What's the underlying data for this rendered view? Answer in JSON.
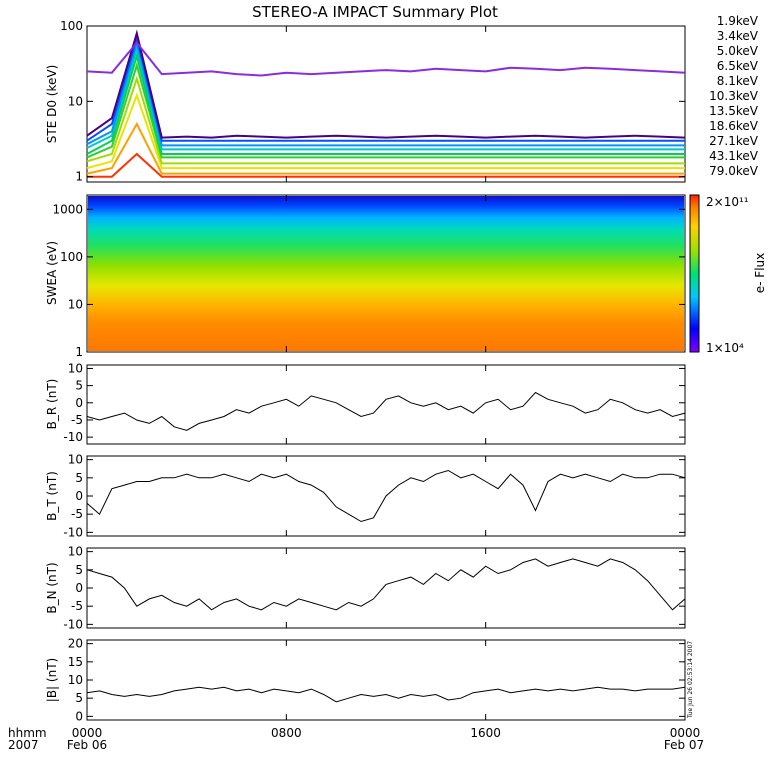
{
  "title": "STEREO-A IMPACT Summary Plot",
  "footer": {
    "time_label": "hhmm",
    "year_label": "2007",
    "x_ticks": [
      "0000",
      "0800",
      "1600",
      "0000"
    ],
    "date_labels": [
      "Feb 06",
      "Feb 07"
    ],
    "stamp": "Tue Jun 26 02:53:14 2007"
  },
  "colors": {
    "trace": "#000000",
    "axis": "#000000",
    "background": "#ffffff"
  },
  "chart_data": [
    {
      "type": "line",
      "panel": "ste",
      "ylabel": "STE D0 (keV)",
      "yscale": "log",
      "ylim": [
        0.85,
        100
      ],
      "y_ticks": [
        "1",
        "10",
        "100"
      ],
      "xlim_hours": [
        0,
        24
      ],
      "legend_position": "right",
      "series": [
        {
          "name": "1.9keV",
          "color": "#8a2be2",
          "values": [
            25,
            24,
            60,
            23,
            24,
            25,
            23,
            22,
            24,
            23,
            24,
            25,
            26,
            25,
            27,
            26,
            25,
            28,
            27,
            26,
            28,
            27,
            26,
            25,
            24
          ]
        },
        {
          "name": "3.4keV",
          "color": "#4b0082",
          "values": [
            3.5,
            6,
            80,
            3.3,
            3.4,
            3.3,
            3.5,
            3.4,
            3.3,
            3.4,
            3.5,
            3.4,
            3.3,
            3.4,
            3.5,
            3.4,
            3.3,
            3.4,
            3.5,
            3.4,
            3.3,
            3.4,
            3.5,
            3.4,
            3.3
          ]
        },
        {
          "name": "5.0keV",
          "color": "#0050ff",
          "values": [
            3,
            5,
            70,
            3,
            3,
            3,
            3,
            3,
            3,
            3,
            3,
            3,
            3,
            3,
            3,
            3,
            3,
            3,
            3,
            3,
            3,
            3,
            3,
            3,
            3
          ]
        },
        {
          "name": "6.5keV",
          "color": "#0096ff",
          "values": [
            2.7,
            4,
            60,
            2.6,
            2.6,
            2.6,
            2.6,
            2.6,
            2.6,
            2.6,
            2.6,
            2.6,
            2.6,
            2.6,
            2.6,
            2.6,
            2.6,
            2.6,
            2.6,
            2.6,
            2.6,
            2.6,
            2.6,
            2.6,
            2.6
          ]
        },
        {
          "name": "8.1keV",
          "color": "#00c8c8",
          "values": [
            2.4,
            3.5,
            50,
            2.3,
            2.3,
            2.3,
            2.3,
            2.3,
            2.3,
            2.3,
            2.3,
            2.3,
            2.3,
            2.3,
            2.3,
            2.3,
            2.3,
            2.3,
            2.3,
            2.3,
            2.3,
            2.3,
            2.3,
            2.3,
            2.3
          ]
        },
        {
          "name": "10.3keV",
          "color": "#00d250",
          "values": [
            2,
            3,
            40,
            2,
            2,
            2,
            2,
            2,
            2,
            2,
            2,
            2,
            2,
            2,
            2,
            2,
            2,
            2,
            2,
            2,
            2,
            2,
            2,
            2,
            2
          ]
        },
        {
          "name": "13.5keV",
          "color": "#32cd32",
          "values": [
            1.8,
            2.5,
            30,
            1.8,
            1.8,
            1.8,
            1.8,
            1.8,
            1.8,
            1.8,
            1.8,
            1.8,
            1.8,
            1.8,
            1.8,
            1.8,
            1.8,
            1.8,
            1.8,
            1.8,
            1.8,
            1.8,
            1.8,
            1.8,
            1.8
          ]
        },
        {
          "name": "18.6keV",
          "color": "#a0dc00",
          "values": [
            1.6,
            2,
            20,
            1.5,
            1.5,
            1.5,
            1.5,
            1.5,
            1.5,
            1.5,
            1.5,
            1.5,
            1.5,
            1.5,
            1.5,
            1.5,
            1.5,
            1.5,
            1.5,
            1.5,
            1.5,
            1.5,
            1.5,
            1.5,
            1.5
          ]
        },
        {
          "name": "27.1keV",
          "color": "#e6e600",
          "values": [
            1.3,
            1.6,
            12,
            1.3,
            1.3,
            1.3,
            1.3,
            1.3,
            1.3,
            1.3,
            1.3,
            1.3,
            1.3,
            1.3,
            1.3,
            1.3,
            1.3,
            1.3,
            1.3,
            1.3,
            1.3,
            1.3,
            1.3,
            1.3,
            1.3
          ]
        },
        {
          "name": "43.1keV",
          "color": "#ffa000",
          "values": [
            1.1,
            1.3,
            5,
            1.1,
            1.1,
            1.1,
            1.1,
            1.1,
            1.1,
            1.1,
            1.1,
            1.1,
            1.1,
            1.1,
            1.1,
            1.1,
            1.1,
            1.1,
            1.1,
            1.1,
            1.1,
            1.1,
            1.1,
            1.1,
            1.1
          ]
        },
        {
          "name": "79.0keV",
          "color": "#ff3200",
          "values": [
            1,
            1,
            2,
            1,
            1,
            1,
            1,
            1,
            1,
            1,
            1,
            1,
            1,
            1,
            1,
            1,
            1,
            1,
            1,
            1,
            1,
            1,
            1,
            1,
            1
          ]
        }
      ]
    },
    {
      "type": "heatmap",
      "panel": "swea",
      "ylabel": "SWEA (eV)",
      "yscale": "log",
      "ylim": [
        1,
        2000
      ],
      "y_ticks": [
        "1000",
        "100",
        "10",
        "1"
      ],
      "xlim_hours": [
        0,
        24
      ],
      "colorbar": {
        "label": "e- Flux",
        "max_label": "2×10¹¹",
        "min_label": "1×10⁴",
        "range": [
          10000,
          200000000000
        ],
        "scale": "log"
      }
    },
    {
      "type": "line",
      "panel": "br",
      "ylabel": "B_R (nT)",
      "ylim": [
        -12,
        11
      ],
      "y_ticks": [
        10,
        5,
        0,
        -5,
        -10
      ],
      "xlim_hours": [
        0,
        24
      ],
      "x": [
        0,
        0.5,
        1,
        1.5,
        2,
        2.5,
        3,
        3.5,
        4,
        4.5,
        5,
        5.5,
        6,
        6.5,
        7,
        7.5,
        8,
        8.5,
        9,
        9.5,
        10,
        10.5,
        11,
        11.5,
        12,
        12.5,
        13,
        13.5,
        14,
        14.5,
        15,
        15.5,
        16,
        16.5,
        17,
        17.5,
        18,
        18.5,
        19,
        19.5,
        20,
        20.5,
        21,
        21.5,
        22,
        22.5,
        23,
        23.5,
        24
      ],
      "values": [
        -4,
        -5,
        -4,
        -3,
        -5,
        -6,
        -4,
        -7,
        -8,
        -6,
        -5,
        -4,
        -2,
        -3,
        -1,
        0,
        1,
        -1,
        2,
        1,
        0,
        -2,
        -4,
        -3,
        1,
        2,
        0,
        -1,
        0,
        -2,
        -1,
        -3,
        0,
        1,
        -2,
        -1,
        3,
        1,
        0,
        -1,
        -3,
        -2,
        1,
        0,
        -2,
        -3,
        -2,
        -4,
        -3
      ]
    },
    {
      "type": "line",
      "panel": "bt",
      "ylabel": "B_T (nT)",
      "ylim": [
        -11,
        11
      ],
      "y_ticks": [
        10,
        5,
        0,
        -5,
        -10
      ],
      "xlim_hours": [
        0,
        24
      ],
      "x": [
        0,
        0.5,
        1,
        1.5,
        2,
        2.5,
        3,
        3.5,
        4,
        4.5,
        5,
        5.5,
        6,
        6.5,
        7,
        7.5,
        8,
        8.5,
        9,
        9.5,
        10,
        10.5,
        11,
        11.5,
        12,
        12.5,
        13,
        13.5,
        14,
        14.5,
        15,
        15.5,
        16,
        16.5,
        17,
        17.5,
        18,
        18.5,
        19,
        19.5,
        20,
        20.5,
        21,
        21.5,
        22,
        22.5,
        23,
        23.5,
        24
      ],
      "values": [
        -2,
        -5,
        2,
        3,
        4,
        4,
        5,
        5,
        6,
        5,
        5,
        6,
        5,
        4,
        6,
        5,
        6,
        4,
        3,
        1,
        -3,
        -5,
        -7,
        -6,
        0,
        3,
        5,
        4,
        6,
        7,
        5,
        6,
        4,
        2,
        6,
        3,
        -4,
        4,
        6,
        5,
        6,
        5,
        4,
        6,
        5,
        5,
        6,
        6,
        5
      ]
    },
    {
      "type": "line",
      "panel": "bn",
      "ylabel": "B_N (nT)",
      "ylim": [
        -11,
        11
      ],
      "y_ticks": [
        10,
        5,
        0,
        -5,
        -10
      ],
      "xlim_hours": [
        0,
        24
      ],
      "x": [
        0,
        0.5,
        1,
        1.5,
        2,
        2.5,
        3,
        3.5,
        4,
        4.5,
        5,
        5.5,
        6,
        6.5,
        7,
        7.5,
        8,
        8.5,
        9,
        9.5,
        10,
        10.5,
        11,
        11.5,
        12,
        12.5,
        13,
        13.5,
        14,
        14.5,
        15,
        15.5,
        16,
        16.5,
        17,
        17.5,
        18,
        18.5,
        19,
        19.5,
        20,
        20.5,
        21,
        21.5,
        22,
        22.5,
        23,
        23.5,
        24
      ],
      "values": [
        5,
        4,
        3,
        0,
        -5,
        -3,
        -2,
        -4,
        -5,
        -3,
        -6,
        -4,
        -3,
        -5,
        -6,
        -4,
        -5,
        -3,
        -4,
        -5,
        -6,
        -4,
        -5,
        -3,
        1,
        2,
        3,
        1,
        4,
        2,
        5,
        3,
        6,
        4,
        5,
        7,
        8,
        6,
        7,
        8,
        7,
        6,
        8,
        7,
        5,
        2,
        -2,
        -6,
        -3
      ]
    },
    {
      "type": "line",
      "panel": "bmag",
      "ylabel": "|B| (nT)",
      "ylim": [
        -1,
        21
      ],
      "y_ticks": [
        20,
        15,
        10,
        5,
        0
      ],
      "xlim_hours": [
        0,
        24
      ],
      "x": [
        0,
        0.5,
        1,
        1.5,
        2,
        2.5,
        3,
        3.5,
        4,
        4.5,
        5,
        5.5,
        6,
        6.5,
        7,
        7.5,
        8,
        8.5,
        9,
        9.5,
        10,
        10.5,
        11,
        11.5,
        12,
        12.5,
        13,
        13.5,
        14,
        14.5,
        15,
        15.5,
        16,
        16.5,
        17,
        17.5,
        18,
        18.5,
        19,
        19.5,
        20,
        20.5,
        21,
        21.5,
        22,
        22.5,
        23,
        23.5,
        24
      ],
      "values": [
        6.5,
        7,
        6,
        5.5,
        6,
        5.5,
        6,
        7,
        7.5,
        8,
        7.5,
        8,
        7,
        7.5,
        6.5,
        7.5,
        7,
        6.5,
        7.5,
        6,
        4,
        5,
        6,
        5.5,
        6,
        5,
        6,
        5.5,
        6,
        4.5,
        5,
        6.5,
        7,
        7.5,
        6.5,
        7,
        7.5,
        7,
        7.5,
        7,
        7.5,
        8,
        7.5,
        7.5,
        7,
        7.5,
        7.5,
        7.5,
        8
      ]
    }
  ]
}
